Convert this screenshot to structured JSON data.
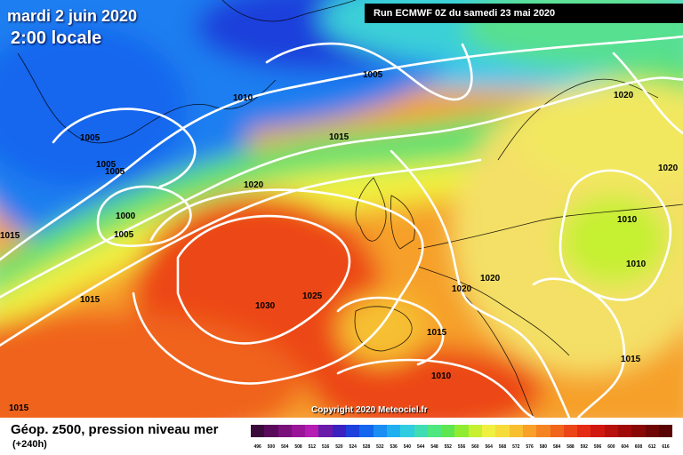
{
  "header": {
    "date": "mardi 2 juin 2020",
    "time": "2:00 locale",
    "run": "Run ECMWF 0Z du samedi 23 mai 2020"
  },
  "copyright": "Copyright 2020 Meteociel.fr",
  "legend": {
    "title": "Géop. z500, pression niveau mer",
    "lead": "(+240h)",
    "scale_values": [
      "496",
      "500",
      "504",
      "508",
      "512",
      "516",
      "520",
      "524",
      "528",
      "532",
      "536",
      "540",
      "544",
      "548",
      "552",
      "556",
      "560",
      "564",
      "568",
      "572",
      "576",
      "580",
      "584",
      "588",
      "592",
      "596",
      "600",
      "604",
      "608",
      "612",
      "616"
    ],
    "scale_colors": [
      "#3a0a3a",
      "#5a0a5a",
      "#7a107a",
      "#9a149a",
      "#b41cb4",
      "#6a1aa8",
      "#3a22c0",
      "#1e40dc",
      "#1466ee",
      "#1a8ef2",
      "#20b0f0",
      "#30cce0",
      "#40dcb4",
      "#50e680",
      "#5ee650",
      "#90ec30",
      "#c6f030",
      "#f0f040",
      "#f6dc3a",
      "#f8c030",
      "#f8a028",
      "#f48422",
      "#f0641c",
      "#ec4618",
      "#e42c14",
      "#d01810",
      "#b8100c",
      "#a00a08",
      "#880806",
      "#6e0606",
      "#580404"
    ]
  },
  "isobars": [
    "1005",
    "1010",
    "1005",
    "1015",
    "1005",
    "1005",
    "1000",
    "1005",
    "1015",
    "1020",
    "1015",
    "1030",
    "1025",
    "1020",
    "1020",
    "1020",
    "1010",
    "1010",
    "1015",
    "1015",
    "1010",
    "1020",
    "1015"
  ]
}
